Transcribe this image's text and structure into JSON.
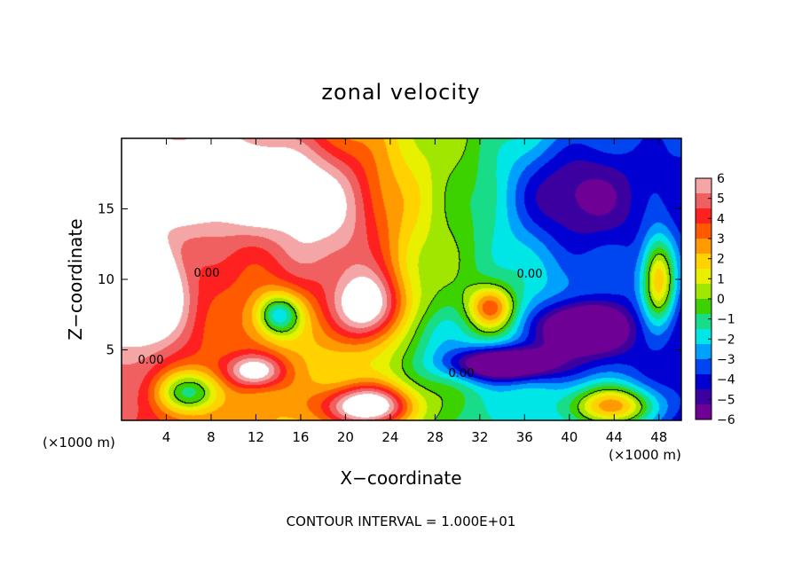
{
  "chart_data": {
    "type": "heatmap",
    "title": "zonal velocity",
    "xlabel": "X−coordinate",
    "ylabel": "Z−coordinate",
    "x_unit_left": "(×1000 m)",
    "x_unit_right": "(×1000 m)",
    "footnote": "CONTOUR INTERVAL = 1.000E+01",
    "xlim": [
      0,
      50
    ],
    "ylim": [
      0,
      20
    ],
    "x_ticks": [
      4,
      8,
      12,
      16,
      20,
      24,
      28,
      32,
      36,
      40,
      44,
      48
    ],
    "y_ticks": [
      5,
      10,
      15
    ],
    "zlim": [
      -6,
      6
    ],
    "colorbar_ticks": [
      "6",
      "5",
      "4",
      "3",
      "2",
      "1",
      "0",
      "−1",
      "−2",
      "−3",
      "−4",
      "−5",
      "−6"
    ],
    "colorbar_colors": [
      "#f4a6a6",
      "#f06060",
      "#ff2020",
      "#ff5a00",
      "#ff9a00",
      "#ffd200",
      "#e8f000",
      "#a0e600",
      "#3cd200",
      "#18dc88",
      "#00e6e6",
      "#00a0ff",
      "#0046f0",
      "#0000d2",
      "#3c00a0",
      "#6e0096"
    ],
    "contour_labels": [
      "0.00",
      "0.00",
      "0.00",
      "0.00"
    ],
    "fields": {
      "blobs": [
        {
          "x": 11,
          "z": 17,
          "sx": 9,
          "sz": 3.5,
          "v": 4.5
        },
        {
          "x": 11,
          "z": 16.5,
          "sx": 3,
          "sz": 1.2,
          "v": 2.5
        },
        {
          "x": 19,
          "z": 13,
          "sx": 6,
          "sz": 5,
          "v": 3.5
        },
        {
          "x": 22,
          "z": 8,
          "sx": 3,
          "sz": 2.5,
          "v": 5.5
        },
        {
          "x": 2,
          "z": 9,
          "sx": 3,
          "sz": 3,
          "v": 7
        },
        {
          "x": 33,
          "z": 8,
          "sx": 2,
          "sz": 1.5,
          "v": 4.5
        },
        {
          "x": 48,
          "z": 10,
          "sx": 1.5,
          "sz": 3,
          "v": 6
        },
        {
          "x": 12,
          "z": 3.5,
          "sx": 2.5,
          "sz": 1.2,
          "v": 4.5
        },
        {
          "x": 22,
          "z": 1,
          "sx": 4,
          "sz": 1.5,
          "v": 7
        },
        {
          "x": 44,
          "z": 1,
          "sx": 4,
          "sz": 1.5,
          "v": 6
        },
        {
          "x": 14,
          "z": 7.5,
          "sx": 2,
          "sz": 1.5,
          "v": -5
        },
        {
          "x": 34,
          "z": 4,
          "sx": 5,
          "sz": 1.2,
          "v": -6.5
        },
        {
          "x": 41,
          "z": 6.5,
          "sx": 4,
          "sz": 1.8,
          "v": -6
        },
        {
          "x": 40,
          "z": 16,
          "sx": 6,
          "sz": 4,
          "v": -3.5
        },
        {
          "x": 6,
          "z": 2,
          "sx": 3,
          "sz": 1.5,
          "v": -4.5
        },
        {
          "x": 28,
          "z": 6,
          "sx": 3,
          "sz": 2,
          "v": -1.5
        }
      ]
    }
  }
}
